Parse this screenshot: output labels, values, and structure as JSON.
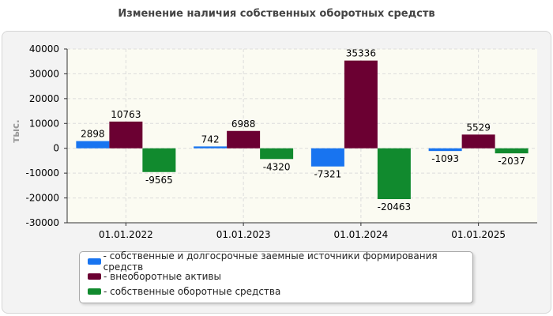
{
  "title": "Изменение наличия собственных оборотных средств",
  "chart_data": {
    "type": "bar",
    "title": "Изменение наличия собственных оборотных средств",
    "ylabel": "тыс.",
    "ylim": [
      -30000,
      40000
    ],
    "yticks": [
      40000,
      30000,
      20000,
      10000,
      0,
      -10000,
      -20000,
      -30000
    ],
    "categories": [
      "01.01.2022",
      "01.01.2023",
      "01.01.2024",
      "01.01.2025"
    ],
    "grid": true,
    "legend_position": "bottom",
    "series": [
      {
        "name": "- собственные и долгосрочные заемные источники формирования средств",
        "color": "#1874f0",
        "values": [
          2898,
          742,
          -7321,
          -1093
        ]
      },
      {
        "name": "- внеоборотные активы",
        "color": "#6b0032",
        "values": [
          10763,
          6988,
          35336,
          5529
        ]
      },
      {
        "name": "- собственные оборотные средства",
        "color": "#118a2e",
        "values": [
          -9565,
          -4320,
          -20463,
          -2037
        ]
      }
    ]
  }
}
